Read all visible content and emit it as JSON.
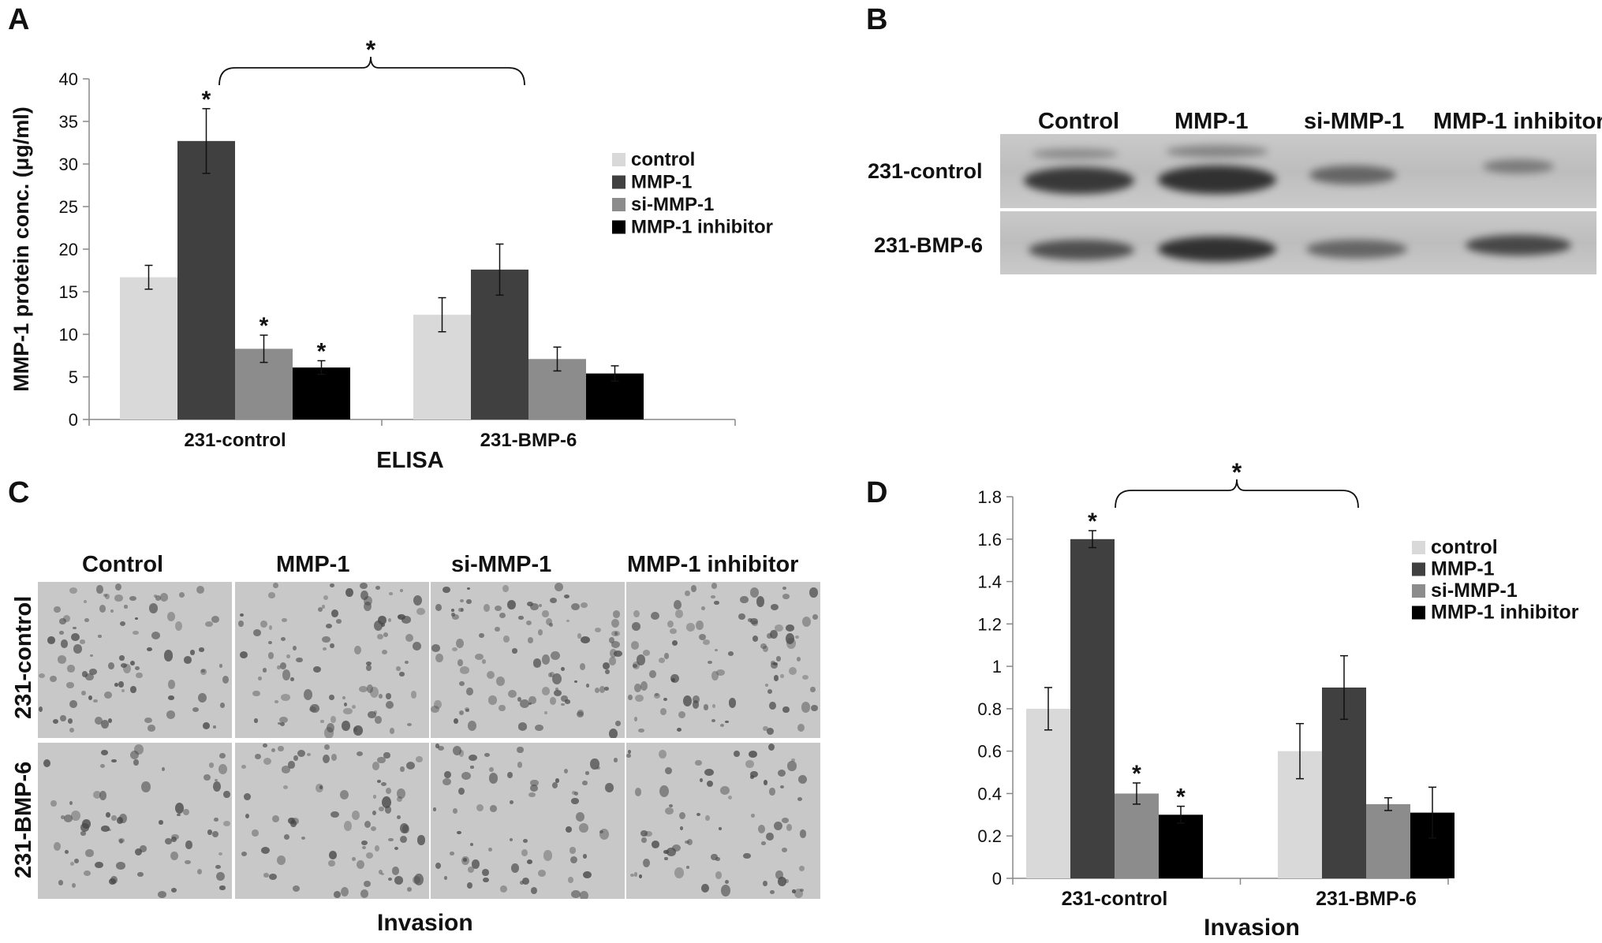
{
  "panels": {
    "a": "A",
    "b": "B",
    "c": "C",
    "d": "D"
  },
  "colors": {
    "control": "#d9d9d9",
    "mmp1": "#404040",
    "si_mmp1": "#8c8c8c",
    "inhibitor": "#000000"
  },
  "chart_data": [
    {
      "id": "A",
      "type": "bar",
      "title": "",
      "xlabel": "ELISA",
      "ylabel": "MMP-1 protein conc. (μg/ml)",
      "ylim": [
        0,
        40
      ],
      "yticks": [
        "0",
        "5",
        "10",
        "15",
        "20",
        "25",
        "30",
        "35",
        "40"
      ],
      "categories": [
        "231-control",
        "231-BMP-6"
      ],
      "legend_position": "right",
      "series": [
        {
          "name": "control",
          "values": [
            16.7,
            12.3
          ],
          "errors": [
            1.4,
            2.0
          ],
          "sig": [
            false,
            false
          ]
        },
        {
          "name": "MMP-1",
          "values": [
            32.7,
            17.6
          ],
          "errors": [
            3.8,
            3.0
          ],
          "sig": [
            true,
            false
          ]
        },
        {
          "name": "si-MMP-1",
          "values": [
            8.3,
            7.1
          ],
          "errors": [
            1.6,
            1.4
          ],
          "sig": [
            true,
            false
          ]
        },
        {
          "name": "MMP-1 inhibitor",
          "values": [
            6.1,
            5.4
          ],
          "errors": [
            0.8,
            0.9
          ],
          "sig": [
            true,
            false
          ]
        }
      ],
      "bracket_label": "*"
    },
    {
      "id": "D",
      "type": "bar",
      "title": "",
      "xlabel": "Invasion",
      "ylabel": "",
      "ylim": [
        0,
        1.8
      ],
      "yticks": [
        "0",
        "0.2",
        "0.4",
        "0.6",
        "0.8",
        "1",
        "1.2",
        "1.4",
        "1.6",
        "1.8"
      ],
      "categories": [
        "231-control",
        "231-BMP-6"
      ],
      "legend_position": "right",
      "series": [
        {
          "name": "control",
          "values": [
            0.8,
            0.6
          ],
          "errors": [
            0.1,
            0.13
          ],
          "sig": [
            false,
            false
          ]
        },
        {
          "name": "MMP-1",
          "values": [
            1.6,
            0.9
          ],
          "errors": [
            0.04,
            0.15
          ],
          "sig": [
            true,
            false
          ]
        },
        {
          "name": "si-MMP-1",
          "values": [
            0.4,
            0.35
          ],
          "errors": [
            0.05,
            0.03
          ],
          "sig": [
            true,
            false
          ]
        },
        {
          "name": "MMP-1 inhibitor",
          "values": [
            0.3,
            0.31
          ],
          "errors": [
            0.04,
            0.12
          ],
          "sig": [
            true,
            false
          ]
        }
      ],
      "bracket_label": "*"
    }
  ],
  "blot": {
    "columns": [
      "Control",
      "MMP-1",
      "si-MMP-1",
      "MMP-1 inhibitor"
    ],
    "rows": [
      "231-control",
      "231-BMP-6"
    ]
  },
  "micrographs": {
    "columns": [
      "Control",
      "MMP-1",
      "si-MMP-1",
      "MMP-1 inhibitor"
    ],
    "rows": [
      "231-control",
      "231-BMP-6"
    ],
    "caption": "Invasion"
  }
}
